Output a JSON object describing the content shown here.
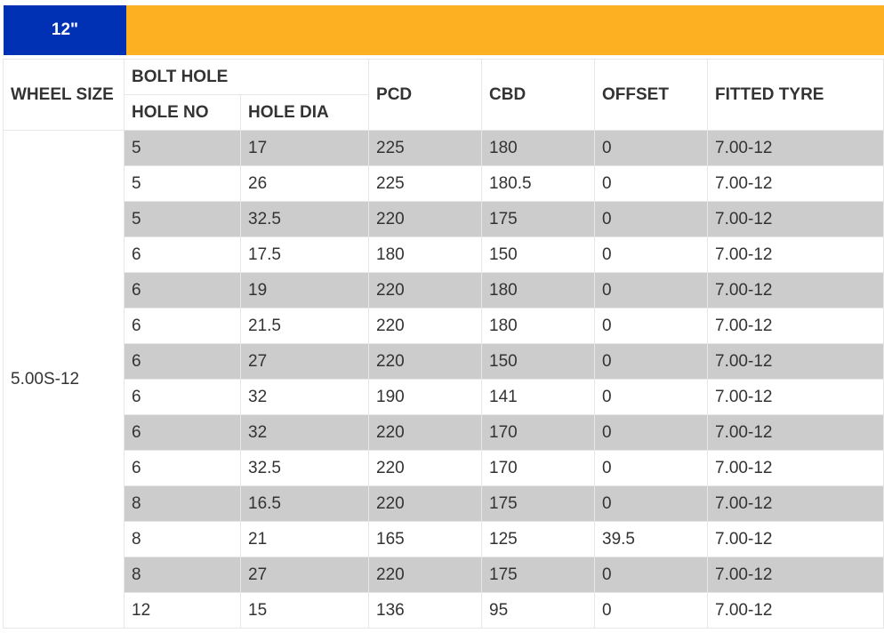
{
  "banner": {
    "size_label": "12\"",
    "brand_color": "#0030b4",
    "accent_color": "#fdb022"
  },
  "table": {
    "headers": {
      "wheel_size": "WHEEL SIZE",
      "bolt_hole": "BOLT HOLE",
      "hole_no": "HOLE NO",
      "hole_dia": "HOLE DIA",
      "pcd": "PCD",
      "cbd": "CBD",
      "offset": "OFFSET",
      "fitted_tyre": "FITTED TYRE"
    },
    "wheel_size": "5.00S-12",
    "row_shade_color": "#cccccc",
    "rows": [
      {
        "hole_no": "5",
        "hole_dia": "17",
        "pcd": "225",
        "cbd": "180",
        "offset": "0",
        "fitted_tyre": "7.00-12",
        "shaded": true
      },
      {
        "hole_no": "5",
        "hole_dia": "26",
        "pcd": "225",
        "cbd": "180.5",
        "offset": "0",
        "fitted_tyre": "7.00-12",
        "shaded": false
      },
      {
        "hole_no": "5",
        "hole_dia": "32.5",
        "pcd": "220",
        "cbd": "175",
        "offset": "0",
        "fitted_tyre": "7.00-12",
        "shaded": true
      },
      {
        "hole_no": "6",
        "hole_dia": "17.5",
        "pcd": "180",
        "cbd": "150",
        "offset": "0",
        "fitted_tyre": "7.00-12",
        "shaded": false
      },
      {
        "hole_no": "6",
        "hole_dia": "19",
        "pcd": "220",
        "cbd": "180",
        "offset": "0",
        "fitted_tyre": "7.00-12",
        "shaded": true
      },
      {
        "hole_no": "6",
        "hole_dia": "21.5",
        "pcd": "220",
        "cbd": "180",
        "offset": "0",
        "fitted_tyre": "7.00-12",
        "shaded": false
      },
      {
        "hole_no": "6",
        "hole_dia": "27",
        "pcd": "220",
        "cbd": "150",
        "offset": "0",
        "fitted_tyre": "7.00-12",
        "shaded": true
      },
      {
        "hole_no": "6",
        "hole_dia": "32",
        "pcd": "190",
        "cbd": "141",
        "offset": "0",
        "fitted_tyre": "7.00-12",
        "shaded": false
      },
      {
        "hole_no": "6",
        "hole_dia": "32",
        "pcd": "220",
        "cbd": "170",
        "offset": "0",
        "fitted_tyre": "7.00-12",
        "shaded": true
      },
      {
        "hole_no": "6",
        "hole_dia": "32.5",
        "pcd": "220",
        "cbd": "170",
        "offset": "0",
        "fitted_tyre": "7.00-12",
        "shaded": false
      },
      {
        "hole_no": "8",
        "hole_dia": "16.5",
        "pcd": "220",
        "cbd": "175",
        "offset": "0",
        "fitted_tyre": "7.00-12",
        "shaded": true
      },
      {
        "hole_no": "8",
        "hole_dia": "21",
        "pcd": "165",
        "cbd": "125",
        "offset": "39.5",
        "fitted_tyre": "7.00-12",
        "shaded": false
      },
      {
        "hole_no": "8",
        "hole_dia": "27",
        "pcd": "220",
        "cbd": "175",
        "offset": "0",
        "fitted_tyre": "7.00-12",
        "shaded": true
      },
      {
        "hole_no": "12",
        "hole_dia": "15",
        "pcd": "136",
        "cbd": "95",
        "offset": "0",
        "fitted_tyre": "7.00-12",
        "shaded": false
      }
    ]
  }
}
